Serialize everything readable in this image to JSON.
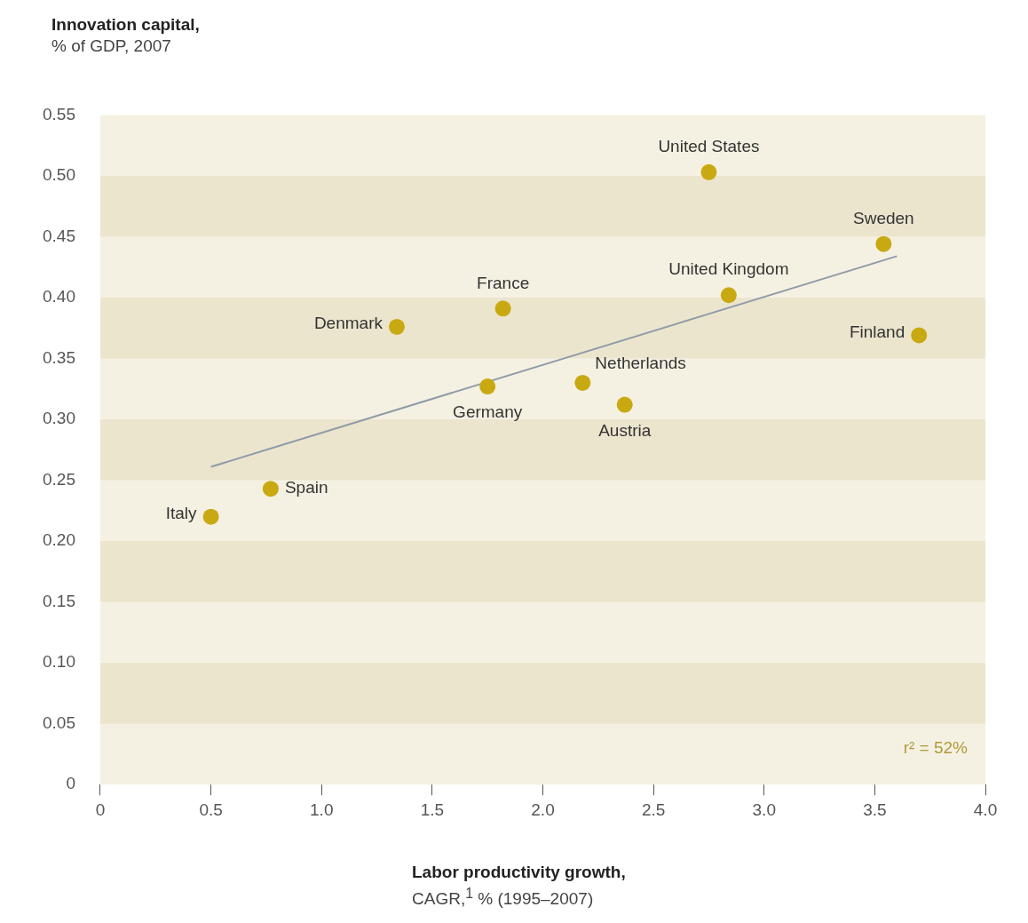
{
  "chart_data": {
    "type": "scatter",
    "ylabel": "Innovation capital,\n% of GDP, 2007",
    "xlabel": "Labor productivity growth,\nCAGR,$^{1}$ % (1995–2007)",
    "series": [
      {
        "name": "Italy",
        "color": "#c9a912",
        "x": [
          0.5
        ],
        "values": [
          0.22
        ]
      },
      {
        "name": "Spain",
        "color": "#c9a912",
        "x": [
          0.77
        ],
        "values": [
          0.243
        ]
      },
      {
        "name": "Denmark",
        "color": "#c9a912",
        "x": [
          1.34
        ],
        "values": [
          0.376
        ]
      },
      {
        "name": "France",
        "color": "#c9a912",
        "x": [
          1.82
        ],
        "values": [
          0.391
        ]
      },
      {
        "name": "Germany",
        "color": "#c9a912",
        "x": [
          1.75
        ],
        "values": [
          0.327
        ]
      },
      {
        "name": "Netherlands",
        "color": "#c9a912",
        "x": [
          2.18
        ],
        "values": [
          0.33
        ]
      },
      {
        "name": "Austria",
        "color": "#c9a912",
        "x": [
          2.37
        ],
        "values": [
          0.312
        ]
      },
      {
        "name": "United States",
        "color": "#c9a912",
        "x": [
          2.75
        ],
        "values": [
          0.503
        ]
      },
      {
        "name": "United Kingdom",
        "color": "#c9a912",
        "x": [
          2.84
        ],
        "values": [
          0.402
        ]
      },
      {
        "name": "Sweden",
        "color": "#c9a912",
        "x": [
          3.54
        ],
        "values": [
          0.444
        ]
      },
      {
        "name": "Finland",
        "color": "#c9a912",
        "x": [
          3.7
        ],
        "values": [
          0.369
        ]
      },
      {
        "type": "line",
        "color": "#8e9ca8",
        "x": [
          0.5,
          3.6
        ],
        "values": [
          0.261,
          0.434
        ],
        "marker": "none"
      }
    ],
    "xlim": [
      0,
      4
    ],
    "xticks": [
      0,
      0.5,
      {
        "value": 1,
        "label": "1.0"
      },
      1.5,
      {
        "value": 2,
        "label": "2.0"
      },
      2.5,
      {
        "value": 3,
        "label": "3.0"
      },
      3.5,
      {
        "value": 4,
        "label": "4.0"
      }
    ],
    "ylim": [
      0,
      0.55
    ],
    "yticks": [
      0,
      0.05,
      {
        "value": 0.1,
        "label": "0.10"
      },
      0.15,
      {
        "value": 0.2,
        "label": "0.20"
      },
      0.25,
      {
        "value": 0.3,
        "label": "0.30"
      },
      0.35,
      {
        "value": 0.4,
        "label": "0.40"
      },
      0.45,
      {
        "value": 0.5,
        "label": "0.50"
      },
      0.55
    ],
    "bands": [
      {
        "axis": "y",
        "from": 0.05,
        "to": 0.1,
        "color": "#ece5cd"
      },
      {
        "axis": "y",
        "from": 0.15,
        "to": 0.2,
        "color": "#ece5cd"
      },
      {
        "axis": "y",
        "from": 0.25,
        "to": 0.3,
        "color": "#ece5cd"
      },
      {
        "axis": "y",
        "from": 0.35,
        "to": 0.4,
        "color": "#ece5cd"
      },
      {
        "axis": "y",
        "from": 0.45,
        "to": 0.5,
        "color": "#ece5cd"
      }
    ],
    "annotations": [
      "r² = 52%"
    ],
    "marker": "circle",
    "grid": false,
    "legend": false
  }
}
